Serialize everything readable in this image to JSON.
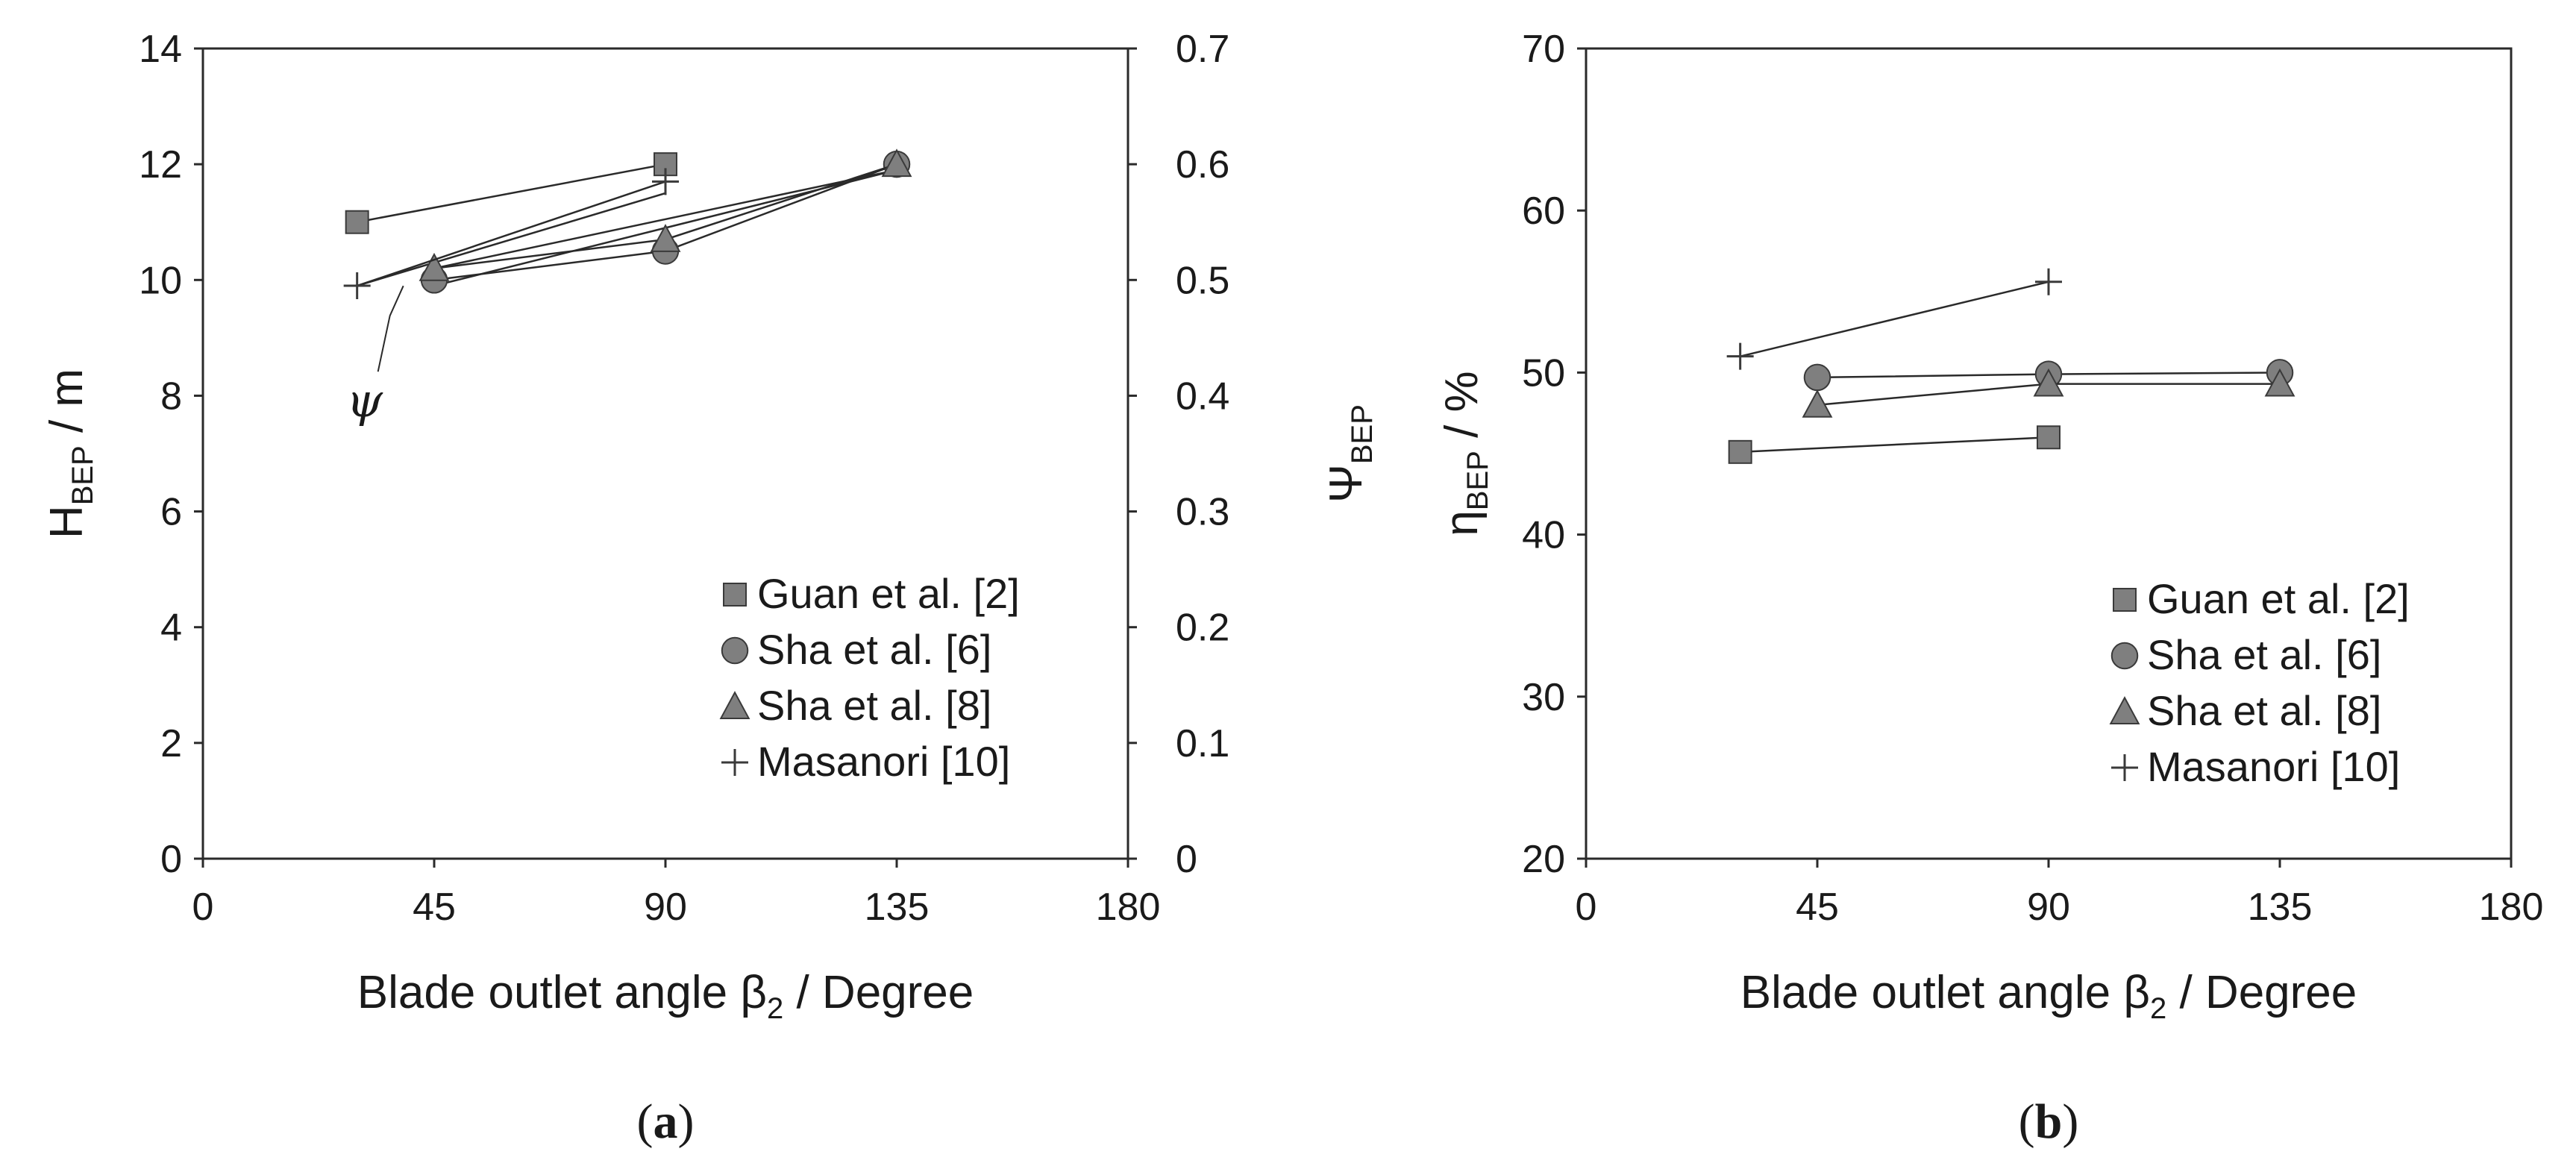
{
  "chart_data": [
    {
      "type": "line",
      "panel_label": "a",
      "xlabel": {
        "main": "Blade outlet angle β",
        "sub": "2",
        "suffix": " / Degree"
      },
      "ylabel_left": {
        "main": "H",
        "sub": "BEP",
        "suffix": " / m"
      },
      "ylabel_right": {
        "main": "Ψ",
        "sub": "BEP",
        "suffix": ""
      },
      "xlim": [
        0,
        180
      ],
      "x_ticks": [
        "0",
        "45",
        "90",
        "135",
        "180"
      ],
      "ylim_left": [
        0,
        14
      ],
      "y_ticks_left": [
        "0",
        "2",
        "4",
        "6",
        "8",
        "10",
        "12",
        "14"
      ],
      "ylim_right": [
        0,
        0.7
      ],
      "y_ticks_right": [
        "0",
        "0.1",
        "0.2",
        "0.3",
        "0.4",
        "0.5",
        "0.6",
        "0.7"
      ],
      "grid": false,
      "legend": "bottom-right",
      "annotation": {
        "text": "ψ",
        "x": 30,
        "y": 7.9
      },
      "series": [
        {
          "name": "Guan et al. [2]",
          "marker": "square",
          "x": [
            30,
            90
          ],
          "y": [
            11.0,
            12.0
          ]
        },
        {
          "name": "Sha et al. [6]",
          "marker": "circle",
          "x": [
            45,
            90,
            135
          ],
          "y": [
            10.0,
            10.5,
            12.0
          ]
        },
        {
          "name": "Sha et al. [8]",
          "marker": "triangle",
          "x": [
            45,
            90,
            135
          ],
          "y": [
            10.2,
            10.7,
            12.0
          ]
        },
        {
          "name": "Masanori [10]",
          "marker": "plus",
          "x": [
            30,
            90
          ],
          "y": [
            9.9,
            11.7
          ]
        }
      ],
      "psi_series": [
        {
          "x": [
            30,
            90
          ],
          "y": [
            9.9,
            11.5
          ]
        },
        {
          "x": [
            45,
            135
          ],
          "y": [
            10.2,
            11.9
          ]
        },
        {
          "x": [
            45,
            135
          ],
          "y": [
            9.9,
            11.9
          ]
        }
      ]
    },
    {
      "type": "line",
      "panel_label": "b",
      "xlabel": {
        "main": "Blade outlet angle β",
        "sub": "2",
        "suffix": " / Degree"
      },
      "ylabel_left": {
        "main": "η",
        "sub": "BEP",
        "suffix": " / %"
      },
      "xlim": [
        0,
        180
      ],
      "x_ticks": [
        "0",
        "45",
        "90",
        "135",
        "180"
      ],
      "ylim_left": [
        20,
        70
      ],
      "y_ticks_left": [
        "20",
        "30",
        "40",
        "50",
        "60",
        "70"
      ],
      "grid": false,
      "legend": "bottom-right",
      "series": [
        {
          "name": "Guan et al. [2]",
          "marker": "square",
          "x": [
            30,
            90
          ],
          "y": [
            45.1,
            46.0
          ]
        },
        {
          "name": "Sha et al. [6]",
          "marker": "circle",
          "x": [
            45,
            90,
            135
          ],
          "y": [
            49.7,
            49.9,
            50.0
          ]
        },
        {
          "name": "Sha et al. [8]",
          "marker": "triangle",
          "x": [
            45,
            90,
            135
          ],
          "y": [
            48.0,
            49.3,
            49.3
          ]
        },
        {
          "name": "Masanori [10]",
          "marker": "plus",
          "x": [
            30,
            90
          ],
          "y": [
            51.0,
            55.6
          ]
        }
      ]
    }
  ]
}
